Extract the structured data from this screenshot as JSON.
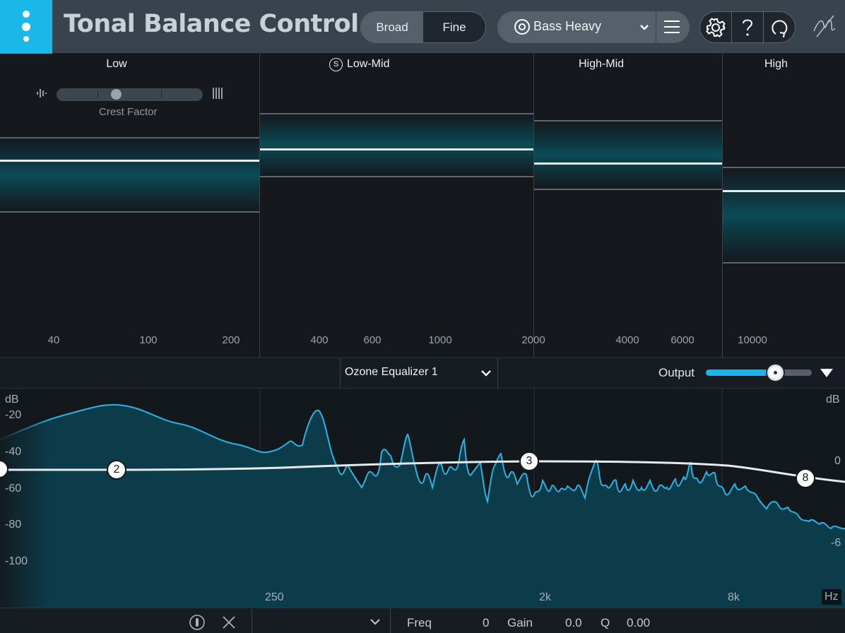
{
  "header": {
    "title": "Tonal Balance Control",
    "view_modes": [
      "Broad",
      "Fine"
    ],
    "active_view": "Broad",
    "preset": {
      "label": "Bass Heavy",
      "icon": "target-icon"
    },
    "tools": [
      "settings-icon",
      "help-icon",
      "refresh-icon"
    ],
    "accent": "#1ab8e8"
  },
  "bands": {
    "low": {
      "title": "Low",
      "ticks": [
        "40",
        "100",
        "200"
      ]
    },
    "low_mid": {
      "title": "Low-Mid",
      "solo": "S",
      "ticks": [
        "400",
        "600",
        "1000",
        "2000"
      ]
    },
    "high_mid": {
      "title": "High-Mid",
      "ticks": [
        "4000",
        "6000"
      ]
    },
    "high": {
      "title": "High",
      "ticks": [
        "10000"
      ]
    },
    "crest_factor": {
      "label": "Crest Factor",
      "value": 0.4
    }
  },
  "midbar": {
    "eq_instance": "Ozone Equalizer 1",
    "output_label": "Output",
    "output_level": 0.65
  },
  "spectrum": {
    "left_unit": "dB",
    "left_scale": [
      "-20",
      "-40",
      "-60",
      "-80",
      "-100"
    ],
    "right_unit": "dB",
    "right_scale": [
      "0",
      "-6"
    ],
    "freq_labels": [
      "250",
      "2k",
      "8k"
    ],
    "freq_unit": "Hz",
    "nodes": [
      "2",
      "3",
      "8"
    ]
  },
  "footer": {
    "freq_label": "Freq",
    "freq_value": "0",
    "gain_label": "Gain",
    "gain_value": "0.0",
    "q_label": "Q",
    "q_value": "0.00"
  }
}
